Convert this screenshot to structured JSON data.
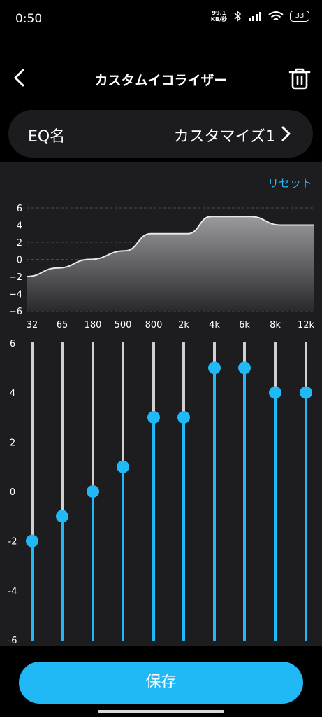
{
  "status_bar": {
    "time": "0:50",
    "net_speed_value": "99.1",
    "net_speed_unit": "KB/秒",
    "battery": "33"
  },
  "header": {
    "title": "カスタムイコライザー"
  },
  "eq_name": {
    "label": "EQ名",
    "value": "カスタマイズ1"
  },
  "reset_label": "リセット",
  "save_label": "保存",
  "colors": {
    "accent": "#21b8f6",
    "panel": "#1d1d20",
    "card": "#1c1c1f",
    "track": "#d0d0d0"
  },
  "chart_data": {
    "type": "area",
    "categories": [
      "32",
      "65",
      "180",
      "500",
      "800",
      "2k",
      "4k",
      "6k",
      "8k",
      "12k"
    ],
    "values": [
      -2,
      -1,
      0,
      1,
      3,
      3,
      5,
      5,
      4,
      4
    ],
    "ylim": [
      -6,
      6
    ],
    "curve_yticks": [
      "6",
      "4",
      "2",
      "0",
      "−2",
      "−4",
      "−6"
    ],
    "slider_yticks": [
      "6",
      "4",
      "2",
      "0",
      "-2",
      "-4",
      "-6"
    ],
    "grid": true
  }
}
